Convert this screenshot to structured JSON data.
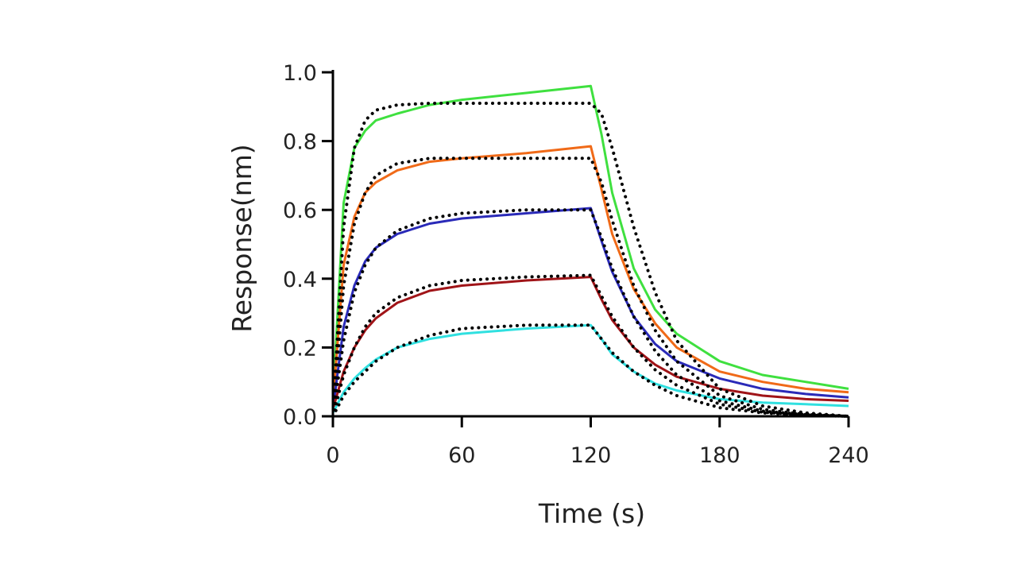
{
  "colors": {
    "background": "#ffffff",
    "axis": "#000000",
    "fit": "#000000"
  },
  "chart_data": {
    "type": "line",
    "title": "",
    "xlabel": "Time (s)",
    "ylabel": "Response(nm)",
    "xlim": [
      0,
      240
    ],
    "ylim": [
      0,
      1.0
    ],
    "xticks": [
      0,
      60,
      120,
      180,
      240
    ],
    "xtick_labels": [
      "0",
      "60",
      "120",
      "180",
      "240"
    ],
    "yticks": [
      0,
      0.2,
      0.4,
      0.6,
      0.8,
      1.0
    ],
    "ytick_labels": [
      "0.0",
      "0.2",
      "0.4",
      "0.6",
      "0.8",
      "1.0"
    ],
    "grid": false,
    "legend": "none",
    "association_end_s": 120,
    "x": [
      0,
      5,
      10,
      15,
      20,
      30,
      45,
      60,
      90,
      120,
      125,
      130,
      140,
      150,
      160,
      180,
      200,
      220,
      240
    ],
    "series": [
      {
        "color": "#3fe03f",
        "style": "solid",
        "values": [
          0.05,
          0.62,
          0.78,
          0.83,
          0.86,
          0.88,
          0.905,
          0.92,
          0.94,
          0.96,
          0.82,
          0.65,
          0.43,
          0.31,
          0.24,
          0.16,
          0.12,
          0.1,
          0.08
        ]
      },
      {
        "color": "#f06a18",
        "style": "solid",
        "values": [
          0.04,
          0.44,
          0.58,
          0.65,
          0.68,
          0.715,
          0.74,
          0.75,
          0.765,
          0.785,
          0.66,
          0.53,
          0.37,
          0.27,
          0.2,
          0.13,
          0.1,
          0.08,
          0.07
        ]
      },
      {
        "color": "#2a2ab8",
        "style": "solid",
        "values": [
          0.02,
          0.26,
          0.38,
          0.45,
          0.49,
          0.53,
          0.56,
          0.575,
          0.59,
          0.605,
          0.51,
          0.42,
          0.29,
          0.21,
          0.16,
          0.11,
          0.08,
          0.065,
          0.055
        ]
      },
      {
        "color": "#a01418",
        "style": "solid",
        "values": [
          0.02,
          0.13,
          0.2,
          0.25,
          0.285,
          0.33,
          0.365,
          0.38,
          0.395,
          0.405,
          0.34,
          0.28,
          0.2,
          0.15,
          0.115,
          0.08,
          0.06,
          0.05,
          0.045
        ]
      },
      {
        "color": "#30e0e0",
        "style": "solid",
        "values": [
          0.01,
          0.07,
          0.11,
          0.14,
          0.165,
          0.2,
          0.225,
          0.24,
          0.255,
          0.265,
          0.225,
          0.18,
          0.13,
          0.095,
          0.075,
          0.05,
          0.04,
          0.035,
          0.03
        ]
      },
      {
        "color": "#000000",
        "style": "dotted",
        "values": [
          0.0,
          0.55,
          0.78,
          0.86,
          0.89,
          0.905,
          0.91,
          0.91,
          0.91,
          0.91,
          0.88,
          0.78,
          0.55,
          0.36,
          0.22,
          0.08,
          0.03,
          0.01,
          0.0
        ]
      },
      {
        "color": "#000000",
        "style": "dotted",
        "values": [
          0.0,
          0.38,
          0.56,
          0.65,
          0.7,
          0.735,
          0.75,
          0.75,
          0.75,
          0.75,
          0.68,
          0.57,
          0.38,
          0.25,
          0.16,
          0.06,
          0.02,
          0.005,
          0.0
        ]
      },
      {
        "color": "#000000",
        "style": "dotted",
        "values": [
          0.0,
          0.22,
          0.36,
          0.44,
          0.49,
          0.54,
          0.575,
          0.59,
          0.6,
          0.6,
          0.52,
          0.43,
          0.29,
          0.19,
          0.12,
          0.045,
          0.015,
          0.005,
          0.0
        ]
      },
      {
        "color": "#000000",
        "style": "dotted",
        "values": [
          0.0,
          0.12,
          0.2,
          0.26,
          0.3,
          0.345,
          0.38,
          0.395,
          0.405,
          0.41,
          0.35,
          0.29,
          0.2,
          0.135,
          0.09,
          0.035,
          0.012,
          0.004,
          0.0
        ]
      },
      {
        "color": "#000000",
        "style": "dotted",
        "values": [
          0.0,
          0.06,
          0.1,
          0.13,
          0.16,
          0.2,
          0.235,
          0.255,
          0.265,
          0.265,
          0.225,
          0.185,
          0.13,
          0.09,
          0.06,
          0.025,
          0.01,
          0.003,
          0.0
        ]
      }
    ]
  }
}
